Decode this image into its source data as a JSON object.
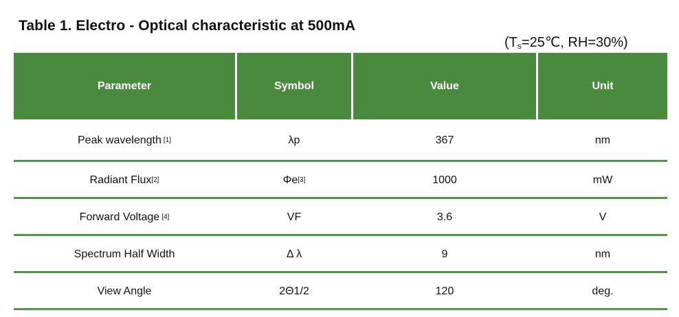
{
  "title": "Table 1. Electro - Optical characteristic at 500mA",
  "conditions": {
    "prefix": "(T",
    "subscript": "s",
    "suffix": "=25℃, RH=30%)"
  },
  "table": {
    "headers": [
      "Parameter",
      "Symbol",
      "Value",
      "Unit"
    ],
    "rows": [
      {
        "parameter": "Peak wavelength",
        "parameter_note": "[1]",
        "symbol": "λp",
        "symbol_note": "",
        "value": "367",
        "unit": "nm"
      },
      {
        "parameter": "Radiant Flux",
        "parameter_note": "[2]",
        "symbol": "Φe",
        "symbol_note": "[3]",
        "value": "1000",
        "unit": "mW"
      },
      {
        "parameter": "Forward Voltage",
        "parameter_note": "[4]",
        "symbol": "VF",
        "symbol_note": "",
        "value": "3.6",
        "unit": "V"
      },
      {
        "parameter": "Spectrum Half Width",
        "parameter_note": "",
        "symbol": "Δ λ",
        "symbol_note": "",
        "value": "9",
        "unit": "nm"
      },
      {
        "parameter": "View Angle",
        "parameter_note": "",
        "symbol": "2Θ1/2",
        "symbol_note": "",
        "value": "120",
        "unit": "deg."
      }
    ]
  },
  "colors": {
    "header_bg": "#4a8a3f",
    "row_divider": "#4a9a3f"
  }
}
